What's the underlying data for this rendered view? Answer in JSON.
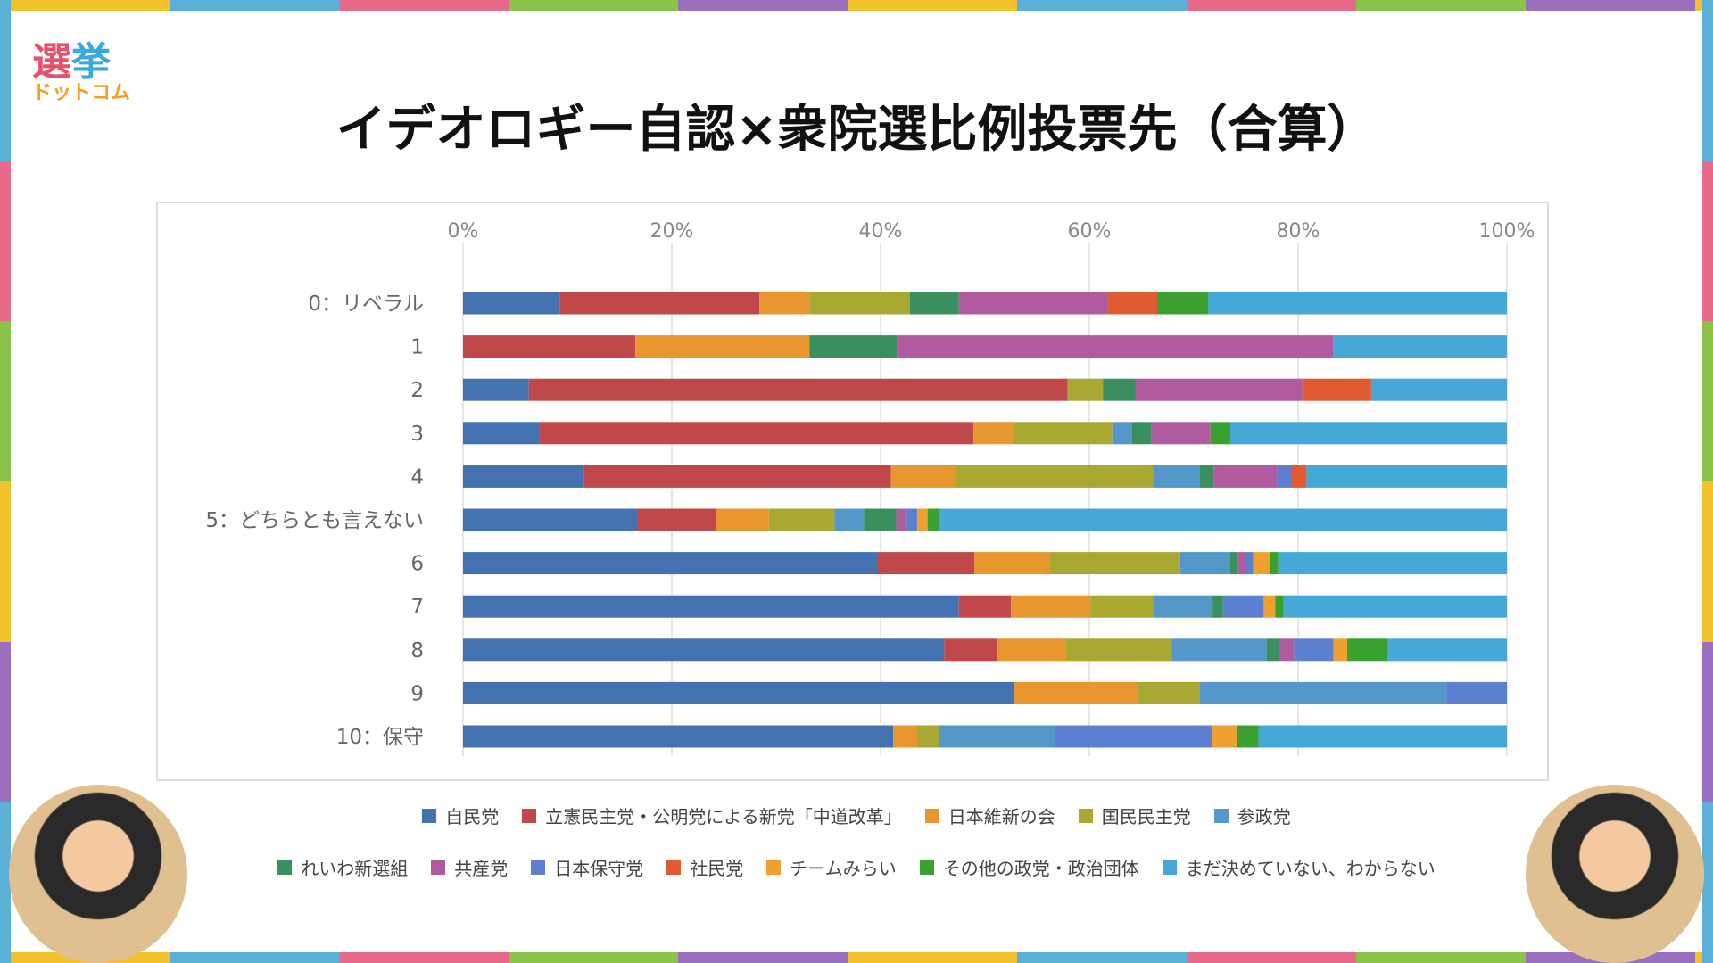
{
  "logo": {
    "line1a": "選",
    "line1b": "挙",
    "line2": "ドットコム"
  },
  "title": "イデオロギー自認×衆院選比例投票先（合算）",
  "chart_data": {
    "type": "bar",
    "orientation": "horizontal",
    "stacked": "percent",
    "title": "イデオロギー自認×衆院選比例投票先（合算）",
    "xlim": [
      0,
      100
    ],
    "xticks": [
      "0%",
      "20%",
      "40%",
      "60%",
      "80%",
      "100%"
    ],
    "categories": [
      "0：リベラル",
      "1",
      "2",
      "3",
      "4",
      "5：どちらとも言えない",
      "6",
      "7",
      "8",
      "9",
      "10：保守"
    ],
    "series": [
      {
        "name": "自民党",
        "color": "#4472b0",
        "values": [
          9.3,
          0,
          6.3,
          7.3,
          11.6,
          16.7,
          39.7,
          47.5,
          46.1,
          52.8,
          41.2
        ]
      },
      {
        "name": "立憲民主党・公明党による新党「中道改革」",
        "color": "#c0474a",
        "values": [
          19.1,
          16.5,
          51.6,
          41.6,
          29.4,
          7.5,
          9.3,
          5.0,
          5.1,
          0,
          0
        ]
      },
      {
        "name": "日本維新の会",
        "color": "#e8962e",
        "values": [
          4.8,
          16.7,
          0,
          3.9,
          6.1,
          5.1,
          7.2,
          7.6,
          6.5,
          11.9,
          2.3
        ]
      },
      {
        "name": "国民民主党",
        "color": "#a8a832",
        "values": [
          9.6,
          0,
          3.4,
          9.4,
          19.0,
          6.3,
          12.5,
          6.0,
          10.2,
          5.9,
          2.1
        ]
      },
      {
        "name": "参政党",
        "color": "#5597c8",
        "values": [
          0,
          0,
          0,
          1.9,
          4.5,
          2.8,
          4.8,
          5.7,
          9.1,
          23.6,
          11.1
        ]
      },
      {
        "name": "れいわ新選組",
        "color": "#3a8f5e",
        "values": [
          4.7,
          8.4,
          3.1,
          1.8,
          1.3,
          3.1,
          0.7,
          1.0,
          1.2,
          0,
          0
        ]
      },
      {
        "name": "共産党",
        "color": "#b05aa0",
        "values": [
          14.3,
          41.8,
          16.0,
          5.7,
          6.1,
          1.0,
          0.8,
          0,
          1.4,
          0,
          0
        ]
      },
      {
        "name": "日本保守党",
        "color": "#5c7fd0",
        "values": [
          0,
          0,
          0,
          0,
          1.4,
          1.0,
          0.7,
          3.9,
          3.8,
          5.8,
          15.1
        ]
      },
      {
        "name": "社民党",
        "color": "#e05a32",
        "values": [
          4.7,
          0,
          6.6,
          0,
          1.4,
          0,
          0,
          0,
          0,
          0,
          0
        ]
      },
      {
        "name": "チームみらい",
        "color": "#f0a030",
        "values": [
          0,
          0,
          0,
          0,
          0,
          1.0,
          1.6,
          1.1,
          1.3,
          0,
          2.3
        ]
      },
      {
        "name": "その他の政党・政治団体",
        "color": "#3aa030",
        "values": [
          4.9,
          0,
          0,
          1.9,
          0,
          1.1,
          0.8,
          0.8,
          3.9,
          0,
          2.1
        ]
      },
      {
        "name": "まだ決めていない、わからない",
        "color": "#45a8d6",
        "values": [
          28.6,
          16.6,
          13.0,
          26.5,
          19.2,
          54.4,
          21.9,
          21.4,
          11.4,
          0,
          23.8
        ]
      }
    ],
    "legend": "bottom"
  }
}
